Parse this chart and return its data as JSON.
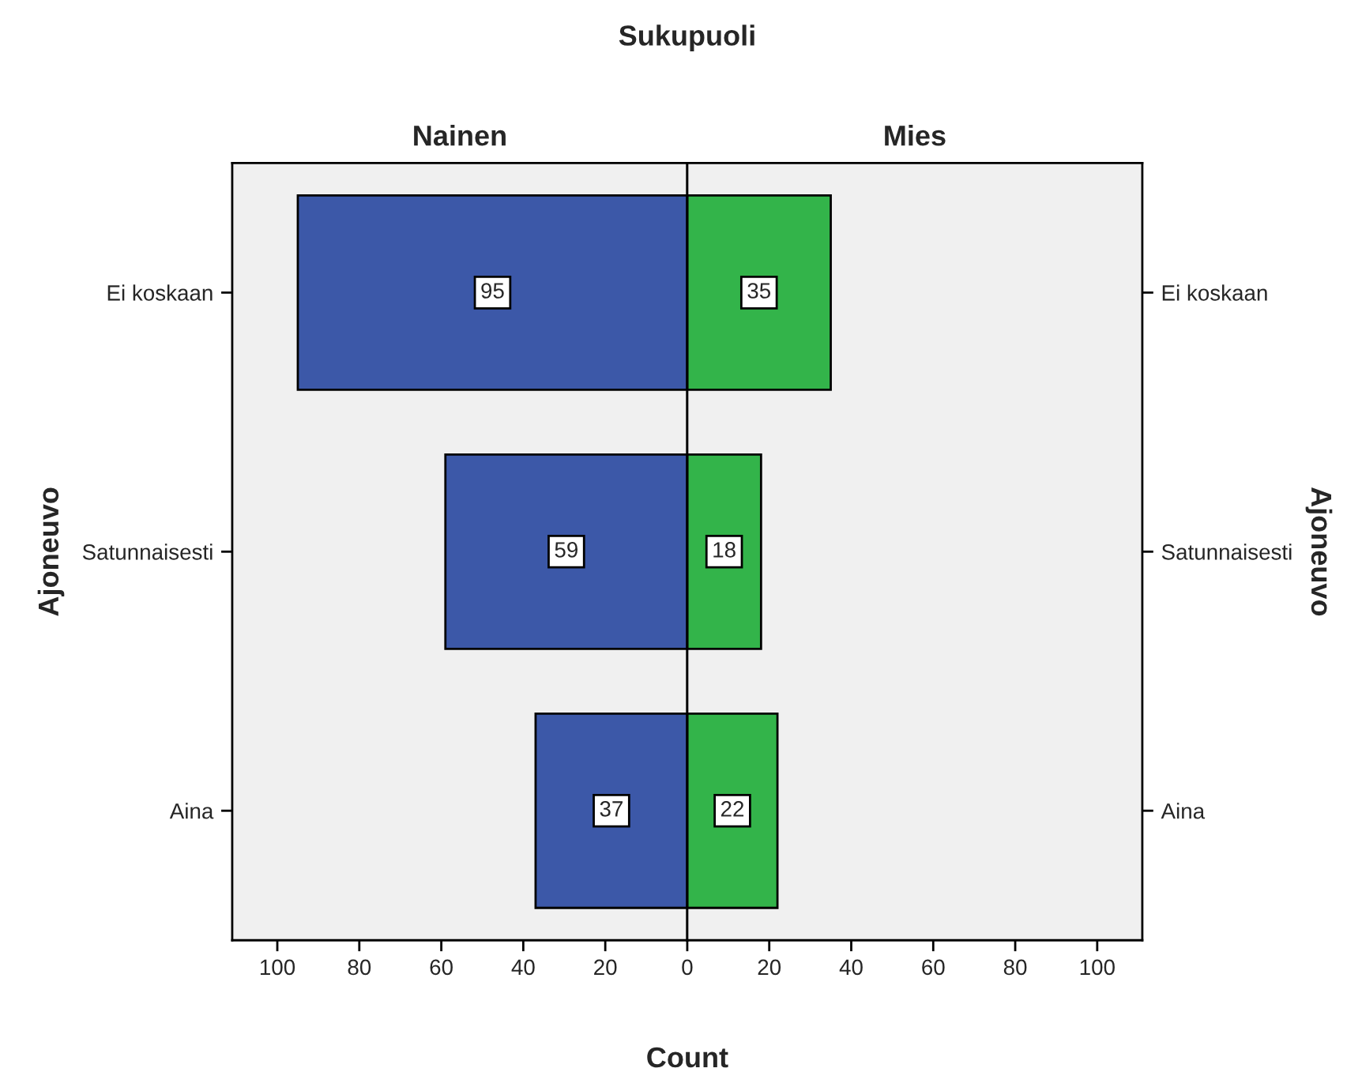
{
  "chart_data": [
    {
      "type": "bar",
      "orientation": "horizontal",
      "title": "Nainen",
      "ylabel": "Ajoneuvo",
      "xlabel": "Count",
      "annotations": [
        "Sukupuoli"
      ],
      "categories": [
        "Ei koskaan",
        "Satunnaisesti",
        "Aina"
      ],
      "values": [
        95,
        59,
        37
      ],
      "color": "#3c58a8",
      "data_labels": true,
      "xlim": [
        111,
        0
      ],
      "xticks": [
        100,
        80,
        60,
        40,
        20,
        0
      ]
    },
    {
      "type": "bar",
      "orientation": "horizontal",
      "title": "Mies",
      "ylabel": "Ajoneuvo",
      "categories": [
        "Ei koskaan",
        "Satunnaisesti",
        "Aina"
      ],
      "values": [
        35,
        18,
        22
      ],
      "color": "#33b44a",
      "data_labels": true,
      "xlim": [
        0,
        111
      ],
      "xticks": [
        20,
        40,
        60,
        80,
        100
      ]
    }
  ]
}
